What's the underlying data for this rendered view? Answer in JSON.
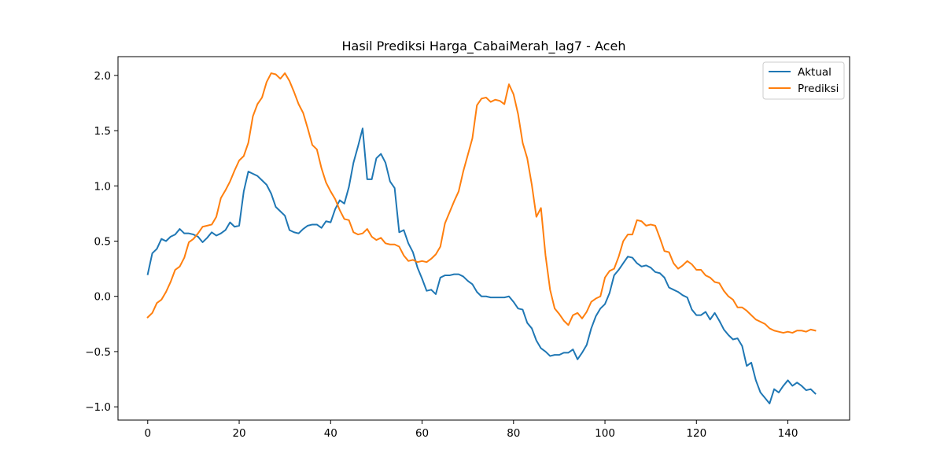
{
  "chart_data": {
    "type": "line",
    "title": "Hasil Prediksi Harga_CabaiMerah_lag7 - Aceh",
    "xlabel": "",
    "ylabel": "",
    "xlim": [
      -6.5,
      153.5
    ],
    "ylim": [
      -1.12,
      2.17
    ],
    "xticks": [
      0,
      20,
      40,
      60,
      80,
      100,
      120,
      140
    ],
    "yticks": [
      -1.0,
      -0.5,
      0.0,
      0.5,
      1.0,
      1.5,
      2.0
    ],
    "ytick_labels": [
      "−1.0",
      "−0.5",
      "0.0",
      "0.5",
      "1.0",
      "1.5",
      "2.0"
    ],
    "grid": false,
    "legend_position": "top-right",
    "series": [
      {
        "name": "Aktual",
        "color": "#1f77b4",
        "x_start": 0,
        "values": [
          0.2,
          0.39,
          0.43,
          0.52,
          0.5,
          0.54,
          0.56,
          0.61,
          0.57,
          0.57,
          0.56,
          0.54,
          0.49,
          0.53,
          0.58,
          0.55,
          0.57,
          0.6,
          0.67,
          0.63,
          0.64,
          0.95,
          1.13,
          1.11,
          1.09,
          1.05,
          1.01,
          0.93,
          0.81,
          0.77,
          0.73,
          0.6,
          0.58,
          0.57,
          0.61,
          0.64,
          0.65,
          0.65,
          0.62,
          0.68,
          0.67,
          0.79,
          0.87,
          0.84,
          0.99,
          1.21,
          1.36,
          1.52,
          1.06,
          1.06,
          1.25,
          1.29,
          1.21,
          1.04,
          0.98,
          0.58,
          0.6,
          0.48,
          0.4,
          0.26,
          0.16,
          0.05,
          0.06,
          0.02,
          0.17,
          0.19,
          0.19,
          0.2,
          0.2,
          0.18,
          0.14,
          0.11,
          0.04,
          0.0,
          0.0,
          -0.01,
          -0.01,
          -0.01,
          -0.01,
          0.0,
          -0.05,
          -0.11,
          -0.12,
          -0.24,
          -0.29,
          -0.4,
          -0.47,
          -0.5,
          -0.54,
          -0.53,
          -0.53,
          -0.51,
          -0.51,
          -0.48,
          -0.57,
          -0.51,
          -0.44,
          -0.29,
          -0.18,
          -0.11,
          -0.07,
          0.03,
          0.19,
          0.24,
          0.3,
          0.36,
          0.35,
          0.3,
          0.27,
          0.28,
          0.26,
          0.22,
          0.21,
          0.17,
          0.08,
          0.06,
          0.04,
          0.01,
          -0.01,
          -0.12,
          -0.17,
          -0.17,
          -0.14,
          -0.21,
          -0.15,
          -0.22,
          -0.3,
          -0.35,
          -0.39,
          -0.38,
          -0.45,
          -0.63,
          -0.6,
          -0.76,
          -0.87,
          -0.92,
          -0.97,
          -0.84,
          -0.87,
          -0.81,
          -0.76,
          -0.81,
          -0.78,
          -0.81,
          -0.85,
          -0.84,
          -0.88
        ]
      },
      {
        "name": "Prediksi",
        "color": "#ff7f0e",
        "x_start": 0,
        "values": [
          -0.19,
          -0.15,
          -0.06,
          -0.03,
          0.04,
          0.13,
          0.24,
          0.27,
          0.35,
          0.49,
          0.52,
          0.57,
          0.63,
          0.64,
          0.65,
          0.72,
          0.89,
          0.96,
          1.04,
          1.14,
          1.23,
          1.27,
          1.39,
          1.63,
          1.74,
          1.8,
          1.94,
          2.02,
          2.01,
          1.97,
          2.02,
          1.95,
          1.85,
          1.74,
          1.66,
          1.52,
          1.37,
          1.33,
          1.16,
          1.03,
          0.95,
          0.88,
          0.78,
          0.7,
          0.69,
          0.58,
          0.56,
          0.57,
          0.61,
          0.54,
          0.51,
          0.53,
          0.48,
          0.47,
          0.47,
          0.45,
          0.37,
          0.32,
          0.33,
          0.31,
          0.32,
          0.31,
          0.34,
          0.38,
          0.45,
          0.66,
          0.76,
          0.86,
          0.95,
          1.13,
          1.28,
          1.43,
          1.73,
          1.79,
          1.8,
          1.76,
          1.78,
          1.77,
          1.74,
          1.92,
          1.83,
          1.65,
          1.39,
          1.25,
          1.01,
          0.72,
          0.8,
          0.37,
          0.06,
          -0.11,
          -0.16,
          -0.22,
          -0.26,
          -0.17,
          -0.15,
          -0.2,
          -0.14,
          -0.05,
          -0.02,
          0.0,
          0.17,
          0.23,
          0.25,
          0.36,
          0.5,
          0.56,
          0.56,
          0.69,
          0.68,
          0.64,
          0.65,
          0.64,
          0.53,
          0.41,
          0.4,
          0.3,
          0.25,
          0.28,
          0.32,
          0.29,
          0.24,
          0.24,
          0.19,
          0.17,
          0.13,
          0.12,
          0.05,
          0.0,
          -0.03,
          -0.1,
          -0.1,
          -0.13,
          -0.17,
          -0.21,
          -0.23,
          -0.25,
          -0.29,
          -0.31,
          -0.32,
          -0.33,
          -0.32,
          -0.33,
          -0.31,
          -0.31,
          -0.32,
          -0.3,
          -0.31
        ]
      }
    ]
  }
}
